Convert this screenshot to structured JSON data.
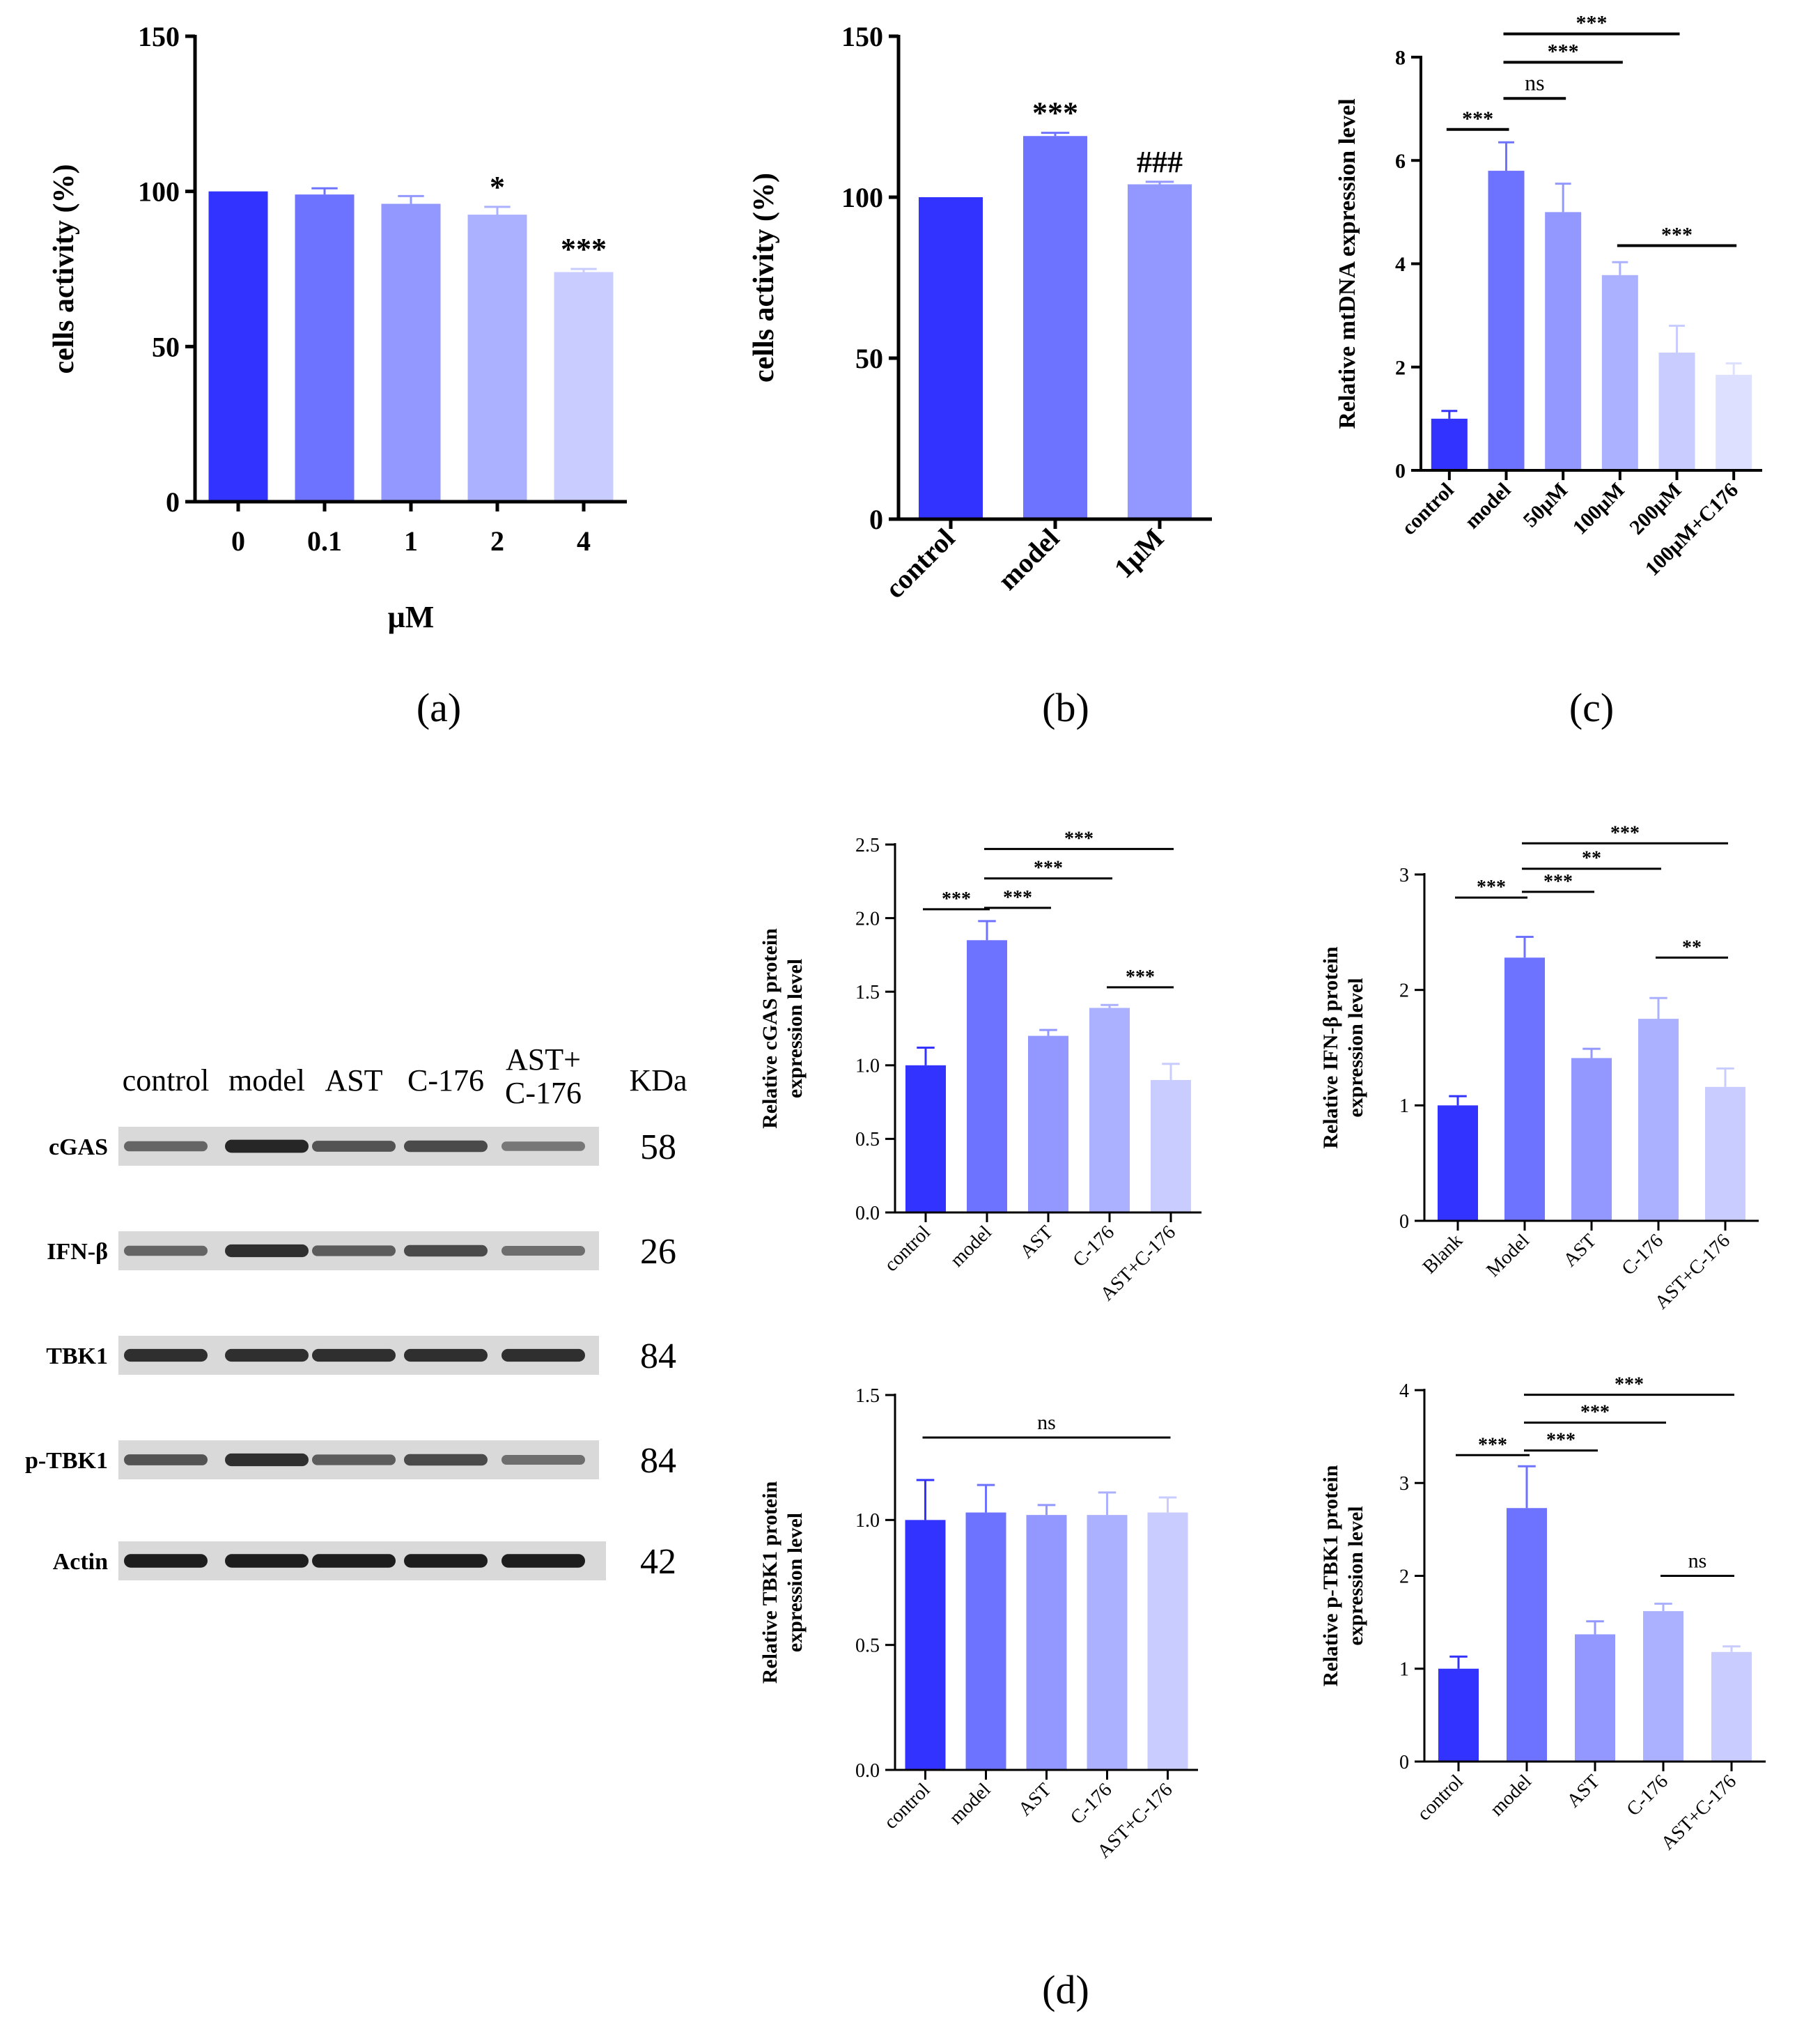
{
  "colors": {
    "c1": "#3333FF",
    "c2": "#6E73FF",
    "c3": "#9298FF",
    "c4": "#ABB0FF",
    "c5": "#C9CCFF",
    "c6": "#DDE0FF",
    "axis": "#000000",
    "text": "#000000"
  },
  "panel_labels": {
    "a": "(a)",
    "b": "(b)",
    "c": "(c)",
    "d": "(d)"
  },
  "chart_data": [
    {
      "id": "a",
      "type": "bar",
      "ylabel": "cells activity (%)",
      "xlabel": "μM",
      "ylim": [
        0,
        150
      ],
      "yticks": [
        0,
        50,
        100,
        150
      ],
      "categories": [
        "0",
        "0.1",
        "1",
        "2",
        "4"
      ],
      "values": [
        100,
        99,
        96,
        92.5,
        74
      ],
      "errors": [
        0,
        2,
        2.5,
        2.5,
        1
      ],
      "annotations": [
        "",
        "",
        "",
        "*",
        "***"
      ],
      "brackets": []
    },
    {
      "id": "b",
      "type": "bar",
      "ylabel": "cells activity (%)",
      "xlabel": "",
      "ylim": [
        0,
        150
      ],
      "yticks": [
        0,
        50,
        100,
        150
      ],
      "categories": [
        "control",
        "model",
        "1μM"
      ],
      "values": [
        100,
        119,
        104
      ],
      "errors": [
        0,
        1,
        0.8
      ],
      "annotations": [
        "",
        "***",
        "###"
      ],
      "brackets": []
    },
    {
      "id": "c",
      "type": "bar",
      "ylabel": "Relative mtDNA expression level",
      "xlabel": "",
      "ylim": [
        0,
        8
      ],
      "yticks": [
        0,
        2,
        4,
        6,
        8
      ],
      "categories": [
        "control",
        "model",
        "50μM",
        "100μM",
        "200μM",
        "100μM+C176"
      ],
      "values": [
        1.0,
        5.8,
        5.0,
        3.78,
        2.28,
        1.85
      ],
      "errors": [
        0.15,
        0.55,
        0.55,
        0.25,
        0.52,
        0.22
      ],
      "annotations": [
        "",
        "",
        "",
        "",
        "",
        ""
      ],
      "brackets": [
        {
          "from": 0,
          "to": 1,
          "y": 6.6,
          "label": "***"
        },
        {
          "from": 1,
          "to": 2,
          "y": 7.2,
          "label": "ns"
        },
        {
          "from": 1,
          "to": 3,
          "y": 7.9,
          "label": "***"
        },
        {
          "from": 1,
          "to": 4,
          "y": 8.45,
          "label": "***"
        },
        {
          "from": 3,
          "to": 5,
          "y": 4.35,
          "label": "***"
        }
      ]
    },
    {
      "id": "d_cgas",
      "type": "bar",
      "ylabel": [
        "Relative cGAS protein",
        "expression level"
      ],
      "xlabel": "",
      "ylim": [
        0,
        2.5
      ],
      "yticks": [
        "0.0",
        "0.5",
        "1.0",
        "1.5",
        "2.0",
        "2.5"
      ],
      "categories": [
        "control",
        "model",
        "AST",
        "C-176",
        "AST+C-176"
      ],
      "values": [
        1.0,
        1.85,
        1.2,
        1.39,
        0.9
      ],
      "errors": [
        0.12,
        0.13,
        0.04,
        0.02,
        0.11
      ],
      "annotations": [
        "",
        "",
        "",
        "",
        ""
      ],
      "brackets": [
        {
          "from": 0,
          "to": 1,
          "y": 2.06,
          "label": "***"
        },
        {
          "from": 1,
          "to": 2,
          "y": 2.07,
          "label": "***"
        },
        {
          "from": 1,
          "to": 3,
          "y": 2.27,
          "label": "***"
        },
        {
          "from": 1,
          "to": 4,
          "y": 2.47,
          "label": "***"
        },
        {
          "from": 3,
          "to": 4,
          "y": 1.53,
          "label": "***"
        }
      ]
    },
    {
      "id": "d_ifnb",
      "type": "bar",
      "ylabel": [
        "Relative IFN-β protein",
        "expression level"
      ],
      "xlabel": "",
      "ylim": [
        0,
        3
      ],
      "yticks": [
        0,
        1,
        2,
        3
      ],
      "categories": [
        "Blank",
        "Model",
        "AST",
        "C-176",
        "AST+C-176"
      ],
      "values": [
        1.0,
        2.28,
        1.41,
        1.75,
        1.16
      ],
      "errors": [
        0.08,
        0.18,
        0.08,
        0.18,
        0.16
      ],
      "annotations": [
        "",
        "",
        "",
        "",
        ""
      ],
      "brackets": [
        {
          "from": 0,
          "to": 1,
          "y": 2.8,
          "label": "***"
        },
        {
          "from": 1,
          "to": 2,
          "y": 2.85,
          "label": "***"
        },
        {
          "from": 1,
          "to": 3,
          "y": 3.05,
          "label": "**"
        },
        {
          "from": 1,
          "to": 4,
          "y": 3.27,
          "label": "***"
        },
        {
          "from": 3,
          "to": 4,
          "y": 2.28,
          "label": "**"
        }
      ]
    },
    {
      "id": "d_tbk1",
      "type": "bar",
      "ylabel": [
        "Relative TBK1 protein",
        "expression level"
      ],
      "xlabel": "",
      "ylim": [
        0,
        1.5
      ],
      "yticks": [
        "0.0",
        "0.5",
        "1.0",
        "1.5"
      ],
      "categories": [
        "control",
        "model",
        "AST",
        "C-176",
        "AST+C-176"
      ],
      "values": [
        1.0,
        1.03,
        1.02,
        1.02,
        1.03
      ],
      "errors": [
        0.16,
        0.11,
        0.04,
        0.09,
        0.06
      ],
      "annotations": [
        "",
        "",
        "",
        "",
        ""
      ],
      "brackets": [
        {
          "from": 0,
          "to": 4,
          "y": 1.33,
          "label": "ns"
        }
      ]
    },
    {
      "id": "d_ptbk1",
      "type": "bar",
      "ylabel": [
        "Relative p-TBK1 protein",
        "expression level"
      ],
      "xlabel": "",
      "ylim": [
        0,
        4
      ],
      "yticks": [
        0,
        1,
        2,
        3,
        4
      ],
      "categories": [
        "control",
        "model",
        "AST",
        "C-176",
        "AST+C-176"
      ],
      "values": [
        1.0,
        2.73,
        1.37,
        1.62,
        1.18
      ],
      "errors": [
        0.13,
        0.45,
        0.14,
        0.08,
        0.06
      ],
      "annotations": [
        "",
        "",
        "",
        "",
        ""
      ],
      "brackets": [
        {
          "from": 0,
          "to": 1,
          "y": 3.3,
          "label": "***"
        },
        {
          "from": 1,
          "to": 2,
          "y": 3.35,
          "label": "***"
        },
        {
          "from": 1,
          "to": 3,
          "y": 3.65,
          "label": "***"
        },
        {
          "from": 1,
          "to": 4,
          "y": 3.95,
          "label": "***"
        },
        {
          "from": 3,
          "to": 4,
          "y": 2.0,
          "label": "ns"
        }
      ]
    }
  ],
  "western_blot": {
    "lanes": [
      "control",
      "model",
      "AST",
      "C-176",
      "AST+\nC-176"
    ],
    "kda_header": "KDa",
    "rows": [
      {
        "name": "cGAS",
        "kda": "58",
        "intensity": [
          0.55,
          0.9,
          0.65,
          0.7,
          0.45
        ]
      },
      {
        "name": "IFN-β",
        "kda": "26",
        "intensity": [
          0.55,
          0.85,
          0.6,
          0.7,
          0.5
        ]
      },
      {
        "name": "TBK1",
        "kda": "84",
        "intensity": [
          0.85,
          0.85,
          0.85,
          0.85,
          0.85
        ]
      },
      {
        "name": "p-TBK1",
        "kda": "84",
        "intensity": [
          0.65,
          0.85,
          0.6,
          0.7,
          0.5
        ]
      },
      {
        "name": "Actin",
        "kda": "42",
        "intensity": [
          0.95,
          0.95,
          0.95,
          0.95,
          0.95
        ]
      }
    ]
  }
}
